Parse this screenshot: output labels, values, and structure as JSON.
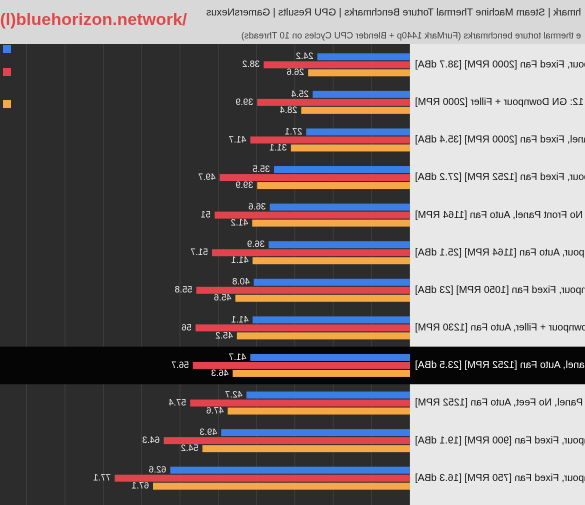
{
  "chart_data": {
    "type": "bar",
    "title": "hmark | Steam Machine Thermal Torture Benchmarks | GPU Results | GamersNexus",
    "subtitle": "e thermal torture benchmarks (FurMark 1440p + Blender CPU Cycles on 10 Threads)",
    "watermark": "(l)bluehorizon.network/",
    "categories": [
      "mpour, Fixed Fan [2000 RPM] [38.7 dBA]",
      "12: GN Downpour + Filler [2000 RPM]",
      "Panel, Fixed Fan [2000 RPM] [35.4 dBA]",
      "npour, Fixed Fan [1252 RPM] [27.2 dBA]",
      "1: No Front Panel, Auto Fan [1164 RPM]",
      "npour, Auto Fan [1164 RPM] [25.1 dBA]",
      "npour, Fixed Fan [1050 RPM] [23 dBA]",
      "Downpour + Filler, Auto Fan [1230 RPM]",
      "Panel, Auto Fan [1252 RPM] [23.5 dBA]",
      "Panel, No Feet, Auto Fan [1252 RPM]",
      "npour, Fixed Fan [900 RPM] [19.1 dBA]",
      "npour, Fixed Fan [750 RPM] [16.3 dBA]"
    ],
    "highlight": 8,
    "series": [
      {
        "color": "#3b7fe6",
        "values": [
          24.2,
          25.4,
          27.1,
          35.5,
          36.6,
          36.9,
          40.8,
          41.1,
          41.7,
          42.7,
          49.3,
          62.6
        ]
      },
      {
        "color": "#e2434d",
        "values": [
          38.2,
          39.9,
          41.7,
          49.7,
          51.0,
          51.7,
          55.8,
          56.0,
          56.7,
          57.4,
          64.3,
          77.1
        ]
      },
      {
        "color": "#f5a845",
        "values": [
          26.6,
          28.4,
          31.1,
          39.9,
          41.2,
          41.1,
          45.6,
          45.2,
          46.3,
          47.6,
          54.2,
          67.1
        ]
      }
    ],
    "xlim": [
      0,
      100
    ]
  }
}
